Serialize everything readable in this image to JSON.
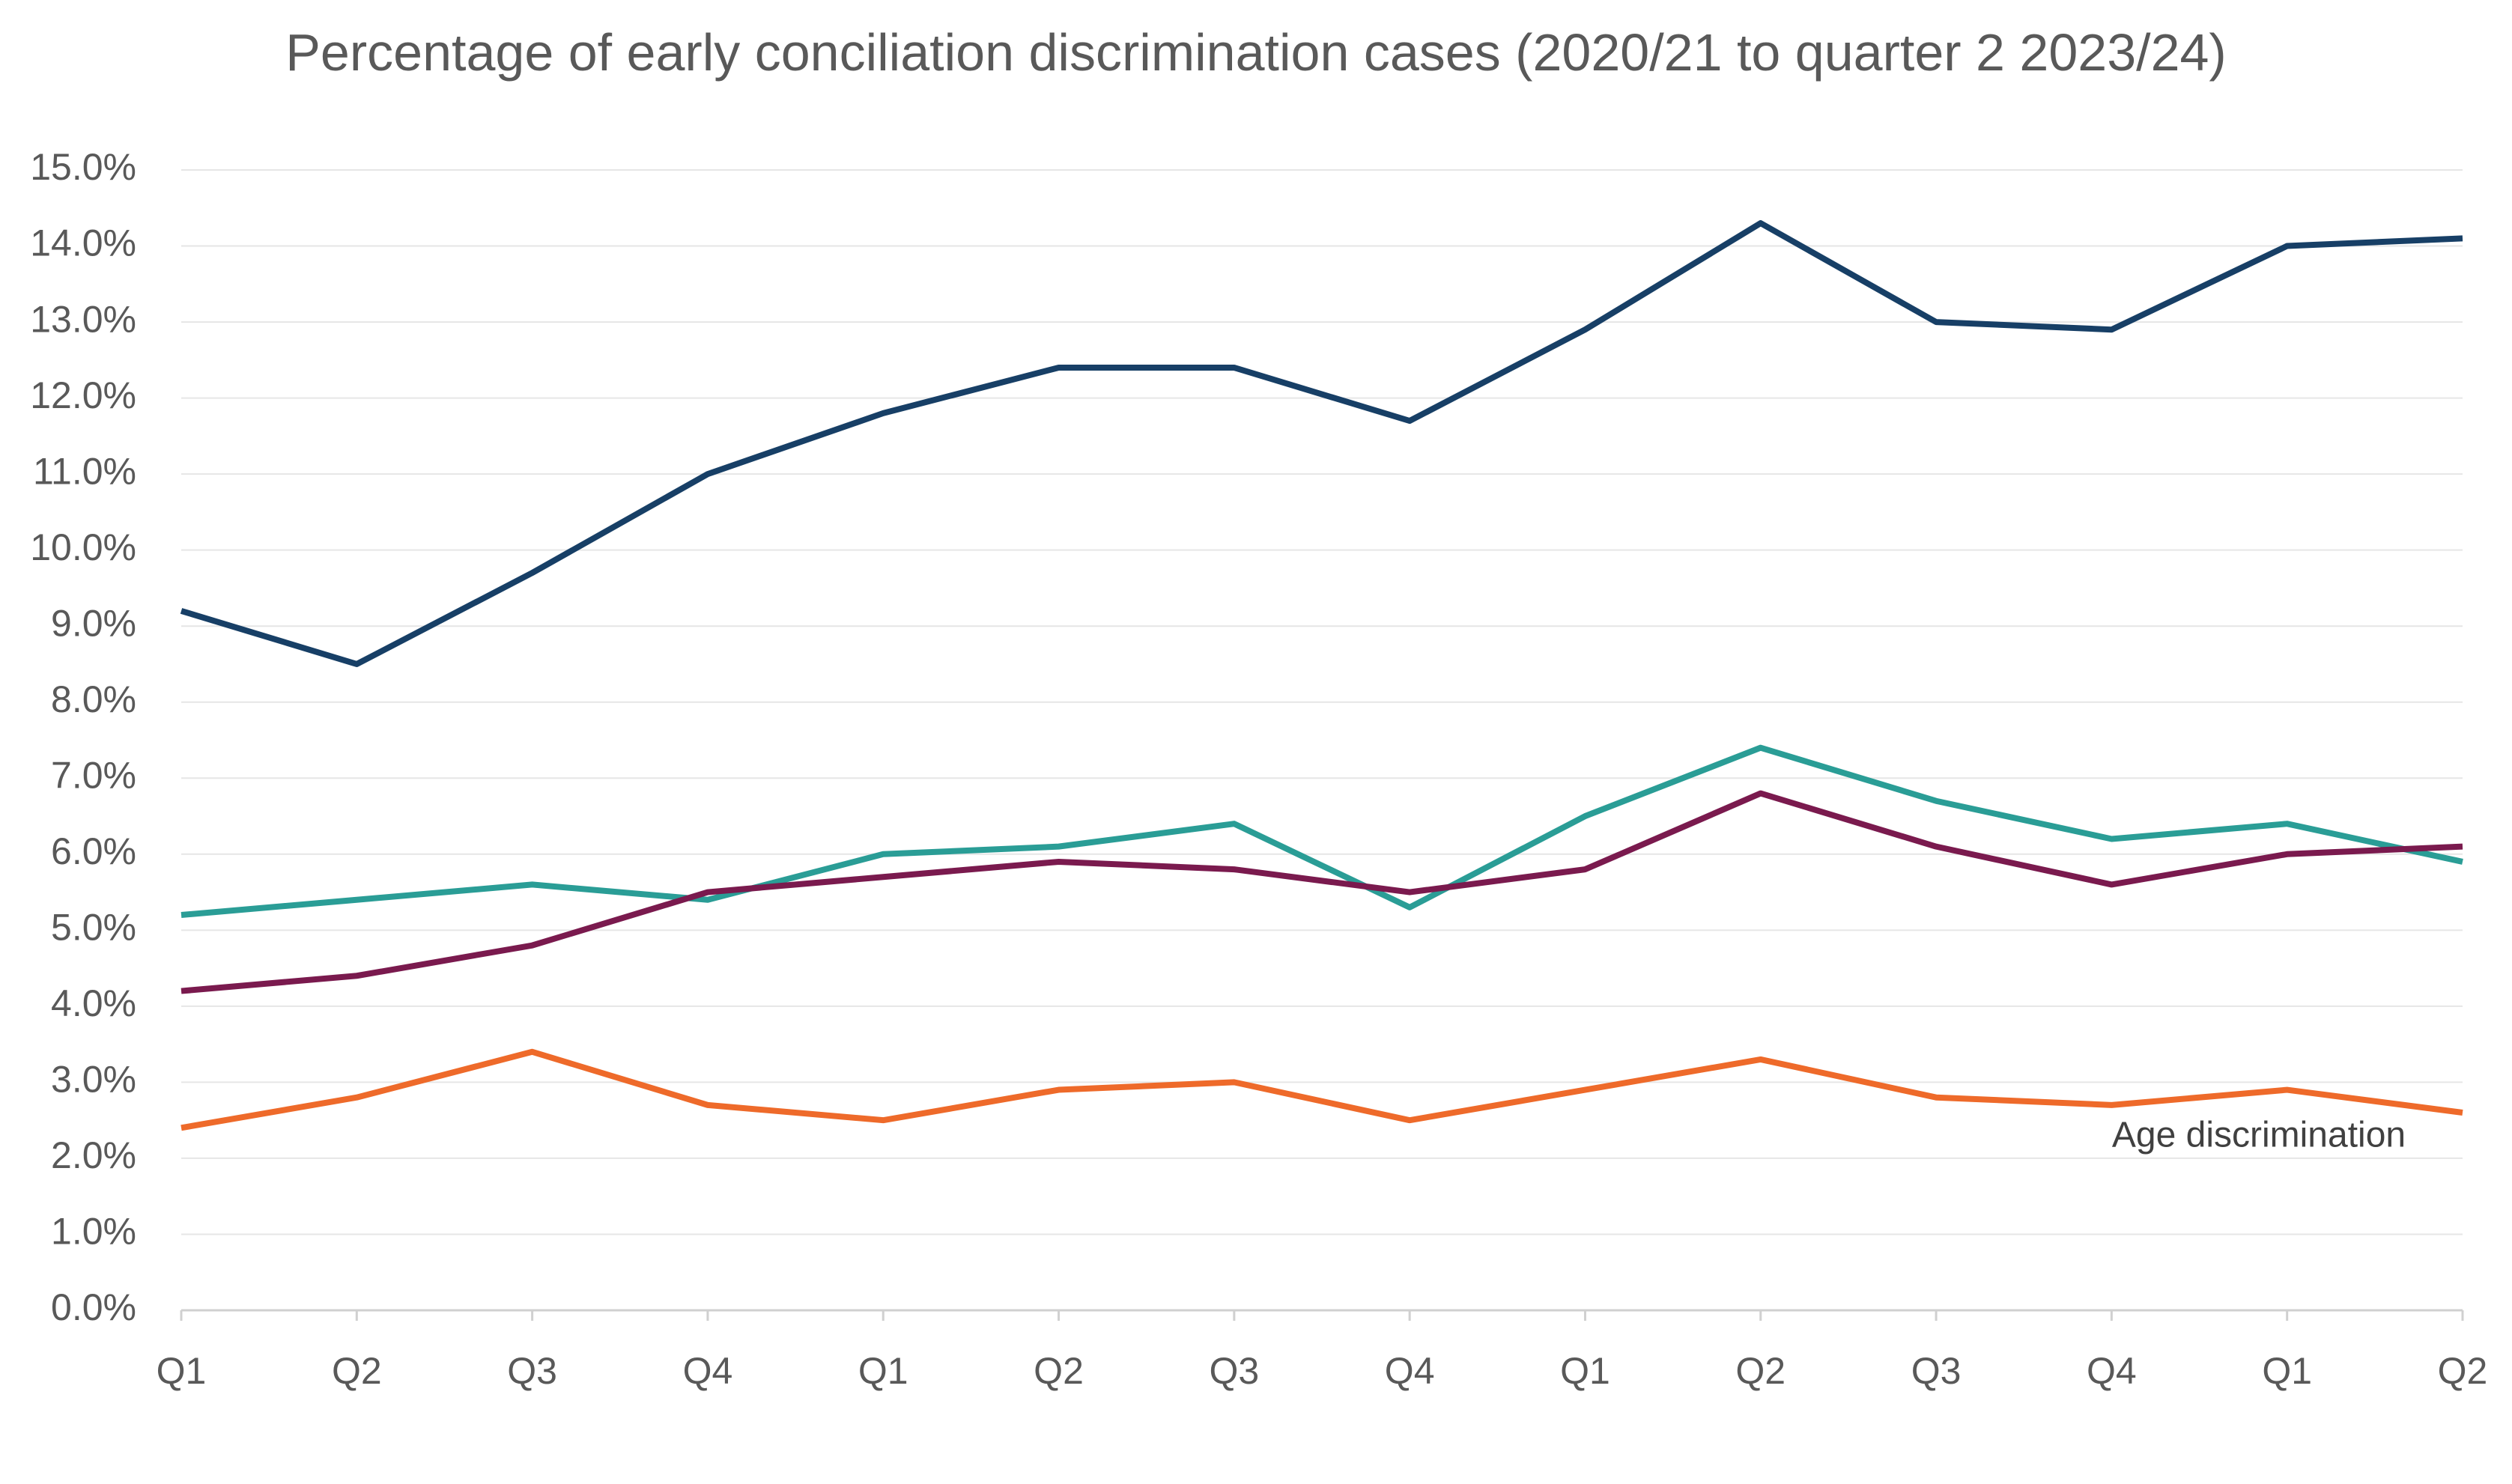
{
  "chart_data": {
    "type": "line",
    "title": "Percentage of early conciliation discrimination cases (2020/21 to quarter 2 2023/24)",
    "categories": [
      "Q1",
      "Q2",
      "Q3",
      "Q4",
      "Q1",
      "Q2",
      "Q3",
      "Q4",
      "Q1",
      "Q2",
      "Q3",
      "Q4",
      "Q1",
      "Q2"
    ],
    "series": [
      {
        "color": "#173f66",
        "values": [
          9.2,
          8.5,
          9.7,
          11.0,
          11.8,
          12.4,
          12.4,
          11.7,
          12.9,
          14.3,
          13.0,
          12.9,
          14.0,
          14.1
        ]
      },
      {
        "color": "#2a9d96",
        "values": [
          5.2,
          5.4,
          5.6,
          5.4,
          6.0,
          6.1,
          6.4,
          5.3,
          6.5,
          7.4,
          6.7,
          6.2,
          6.4,
          5.9
        ]
      },
      {
        "color": "#7a1a4e",
        "values": [
          4.2,
          4.4,
          4.8,
          5.5,
          5.7,
          5.9,
          5.8,
          5.5,
          5.8,
          6.8,
          6.1,
          5.6,
          6.0,
          6.1
        ]
      },
      {
        "name": "Age discrimination",
        "color": "#ee6a2a",
        "values": [
          2.4,
          2.8,
          3.4,
          2.7,
          2.5,
          2.9,
          3.0,
          2.5,
          2.9,
          3.3,
          2.8,
          2.7,
          2.9,
          2.6
        ]
      }
    ],
    "ylim": [
      0,
      15
    ],
    "yticks": [
      {
        "value": 0,
        "label": "0.0%"
      },
      {
        "value": 1,
        "label": "1.0%"
      },
      {
        "value": 2,
        "label": "2.0%"
      },
      {
        "value": 3,
        "label": "3.0%"
      },
      {
        "value": 4,
        "label": "4.0%"
      },
      {
        "value": 5,
        "label": "5.0%"
      },
      {
        "value": 6,
        "label": "6.0%"
      },
      {
        "value": 7,
        "label": "7.0%"
      },
      {
        "value": 8,
        "label": "8.0%"
      },
      {
        "value": 9,
        "label": "9.0%"
      },
      {
        "value": 10,
        "label": "10.0%"
      },
      {
        "value": 11,
        "label": "11.0%"
      },
      {
        "value": 12,
        "label": "12.0%"
      },
      {
        "value": 13,
        "label": "13.0%"
      },
      {
        "value": 14,
        "label": "14.0%"
      },
      {
        "value": 15,
        "label": "15.0%"
      }
    ],
    "grid": true
  }
}
